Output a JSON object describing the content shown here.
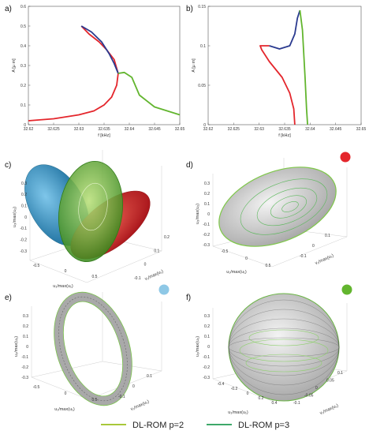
{
  "panel_labels": [
    "a)",
    "b)",
    "c)",
    "d)",
    "e)",
    "f)"
  ],
  "colors": {
    "red": "#e4262c",
    "blue": "#2a3a8f",
    "green": "#62b52e",
    "light_blue": "#8ec8e6",
    "dl_rom_p2": "#a8c83a",
    "dl_rom_p3": "#3ea86a",
    "surface_gray": "#d9d9d9"
  },
  "markers": {
    "d": "red",
    "e": "light_blue",
    "f": "green"
  },
  "legend": [
    {
      "label": "DL-ROM p=2",
      "color": "#a8c83a"
    },
    {
      "label": "DL-ROM p=3",
      "color": "#3ea86a"
    }
  ],
  "chart_data": [
    {
      "panel": "a)",
      "type": "line",
      "xlabel": "f [kHz]",
      "ylabel": "A [µ m]",
      "xlim": [
        32.62,
        32.65
      ],
      "ylim": [
        0,
        0.6
      ],
      "xticks": [
        "32.62",
        "32.625",
        "32.63",
        "32.635",
        "32.64",
        "32.645",
        "32.65"
      ],
      "yticks": [
        "0",
        "0.1",
        "0.2",
        "0.3",
        "0.4",
        "0.5",
        "0.6"
      ],
      "series": [
        {
          "color": "red",
          "x": [
            32.62,
            32.625,
            32.63,
            32.633,
            32.635,
            32.6365,
            32.6375,
            32.6378,
            32.637,
            32.6355,
            32.634,
            32.632,
            32.6305
          ],
          "y": [
            0.02,
            0.03,
            0.05,
            0.07,
            0.1,
            0.14,
            0.2,
            0.26,
            0.33,
            0.38,
            0.42,
            0.46,
            0.5
          ]
        },
        {
          "color": "blue",
          "x": [
            32.6305,
            32.6325,
            32.6345,
            32.636,
            32.637,
            32.6378
          ],
          "y": [
            0.5,
            0.47,
            0.42,
            0.36,
            0.31,
            0.26
          ]
        },
        {
          "color": "green",
          "x": [
            32.6378,
            32.639,
            32.6405,
            32.642,
            32.645,
            32.65
          ],
          "y": [
            0.26,
            0.265,
            0.24,
            0.15,
            0.09,
            0.05
          ]
        }
      ]
    },
    {
      "panel": "b)",
      "type": "line",
      "xlabel": "f [kHz]",
      "ylabel": "A [µ m]",
      "xlim": [
        32.62,
        32.65
      ],
      "ylim": [
        0,
        0.15
      ],
      "xticks": [
        "32.62",
        "32.625",
        "32.63",
        "32.635",
        "32.64",
        "32.645",
        "32.65"
      ],
      "yticks": [
        "0",
        "0.05",
        "0.1",
        "0.15"
      ],
      "series": [
        {
          "color": "red",
          "x": [
            32.637,
            32.6368,
            32.636,
            32.6345,
            32.632,
            32.6305,
            32.6302,
            32.632
          ],
          "y": [
            0.0,
            0.02,
            0.04,
            0.06,
            0.08,
            0.095,
            0.1,
            0.1
          ]
        },
        {
          "color": "blue",
          "x": [
            32.632,
            32.634,
            32.636,
            32.637,
            32.6375,
            32.638
          ],
          "y": [
            0.1,
            0.096,
            0.1,
            0.115,
            0.135,
            0.145
          ]
        },
        {
          "color": "green",
          "x": [
            32.638,
            32.6385,
            32.639,
            32.6393,
            32.6395
          ],
          "y": [
            0.145,
            0.12,
            0.06,
            0.02,
            0.0
          ]
        }
      ]
    }
  ],
  "phase_panels": [
    {
      "panel": "c)",
      "zlabel": "u₃/max(u₃)",
      "xlabel": "u₁/max(u₁)",
      "ylabel": "v₁/max(u₁)",
      "zticks": [
        "0.3",
        "0.2",
        "0.1",
        "0",
        "-0.1",
        "-0.2",
        "-0.3"
      ],
      "xticks": [
        "-0.5",
        "0",
        "0.5"
      ],
      "yticks": [
        "-0.1",
        "0",
        "0.1",
        "0.2"
      ]
    },
    {
      "panel": "d)",
      "zlabel": "u₃/max(u₃)",
      "xlabel": "u₁/max(u₁)",
      "ylabel": "v₁/max(u₁)",
      "zticks": [
        "0.3",
        "0.2",
        "0.1",
        "0",
        "-0.1",
        "-0.2",
        "-0.3"
      ],
      "xticks": [
        "-0.5",
        "0",
        "0.5"
      ],
      "yticks": [
        "-0.1",
        "0",
        "0.1"
      ]
    },
    {
      "panel": "e)",
      "zlabel": "u₃/max(u₃)",
      "xlabel": "u₁/max(u₁)",
      "ylabel": "v₁/max(u₁)",
      "zticks": [
        "0.3",
        "0.2",
        "0.1",
        "0",
        "-0.1",
        "-0.2",
        "-0.3"
      ],
      "xticks": [
        "-0.5",
        "0",
        "0.5"
      ],
      "yticks": [
        "-0.1",
        "0",
        "0.1"
      ]
    },
    {
      "panel": "f)",
      "zlabel": "u₃/max(u₃)",
      "xlabel": "u₁/max(u₁)",
      "ylabel": "v₁/max(u₁)",
      "zticks": [
        "0.3",
        "0.2",
        "0.1",
        "0",
        "-0.1",
        "-0.2",
        "-0.3"
      ],
      "xticks": [
        "-0.4",
        "-0.2",
        "0",
        "0.2",
        "0.4"
      ],
      "yticks": [
        "-0.1",
        "-0.05",
        "0",
        "0.05",
        "0.1"
      ]
    }
  ]
}
